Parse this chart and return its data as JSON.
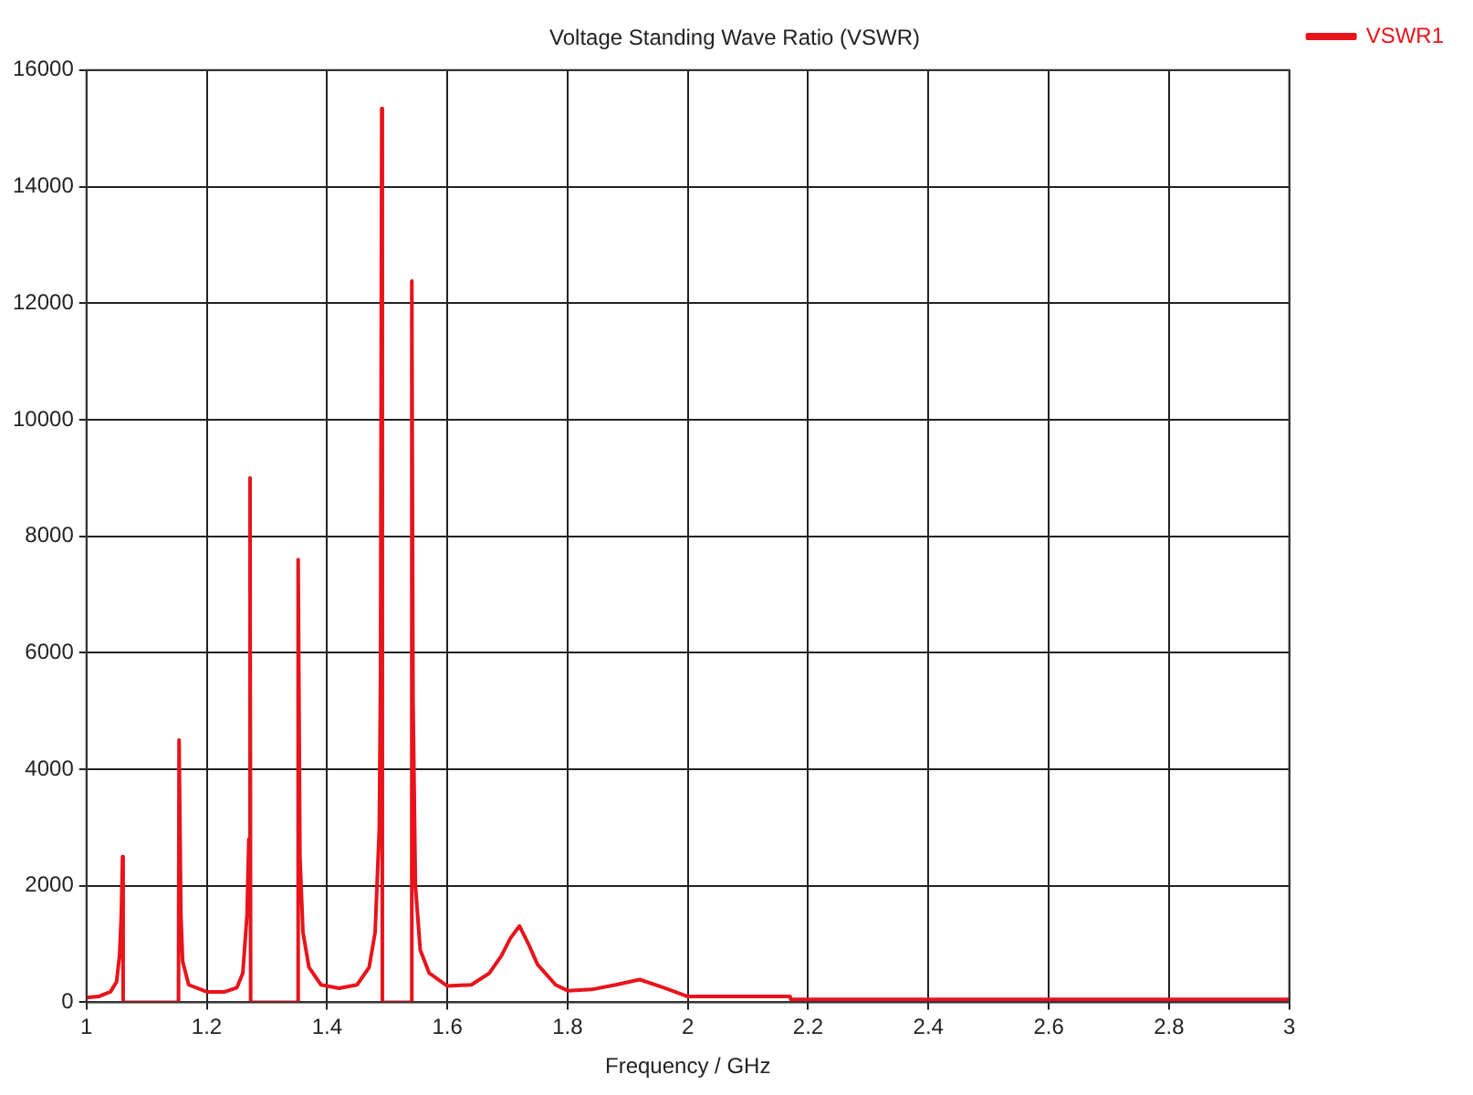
{
  "chart_data": {
    "type": "line",
    "title": "Voltage Standing Wave Ratio (VSWR)",
    "xlabel": "Frequency / GHz",
    "xlim": [
      1,
      3
    ],
    "xticks": [
      1,
      1.2,
      1.4,
      1.6,
      1.8,
      2,
      2.2,
      2.4,
      2.6,
      2.8,
      3
    ],
    "ylim": [
      0,
      16000
    ],
    "yticks": [
      0,
      2000,
      4000,
      6000,
      8000,
      10000,
      12000,
      14000,
      16000
    ],
    "grid": true,
    "legend": "top right",
    "marker": "none",
    "line_style": "solid",
    "series": [
      {
        "name": "VSWR1",
        "color": "#e8141b",
        "x": [
          1,
          1.02,
          1.04,
          1.05,
          1.055,
          1.058,
          1.06,
          1.061,
          1.1,
          1.153,
          1.154,
          1.157,
          1.16,
          1.17,
          1.2,
          1.23,
          1.25,
          1.26,
          1.267,
          1.27,
          1.272,
          1.273,
          1.32,
          1.351,
          1.352,
          1.355,
          1.36,
          1.37,
          1.39,
          1.42,
          1.45,
          1.47,
          1.48,
          1.487,
          1.489,
          1.491,
          1.492,
          1.52,
          1.54,
          1.541,
          1.543,
          1.547,
          1.555,
          1.57,
          1.6,
          1.64,
          1.67,
          1.69,
          1.705,
          1.72,
          1.735,
          1.75,
          1.78,
          1.8,
          1.84,
          1.88,
          1.92,
          1.96,
          2,
          2.17,
          2.171,
          3
        ],
        "values": [
          80,
          100,
          180,
          350,
          800,
          1500,
          2500,
          0,
          0,
          0,
          4500,
          1500,
          700,
          300,
          180,
          180,
          250,
          500,
          1500,
          2800,
          9000,
          0,
          0,
          0,
          7600,
          2500,
          1200,
          600,
          300,
          240,
          300,
          600,
          1200,
          3000,
          5600,
          15340,
          0,
          0,
          0,
          12380,
          5200,
          2000,
          900,
          500,
          280,
          300,
          500,
          800,
          1100,
          1310,
          1000,
          650,
          300,
          200,
          220,
          300,
          390,
          250,
          100,
          100,
          50,
          50
        ]
      }
    ]
  }
}
